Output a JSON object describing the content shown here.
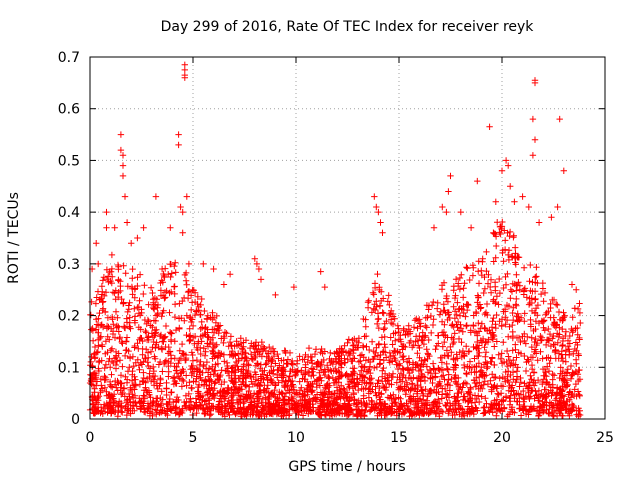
{
  "chart_data": {
    "type": "scatter",
    "title": "Day 299 of 2016, Rate Of TEC Index for receiver reyk",
    "xlabel": "GPS time / hours",
    "ylabel": "ROTI / TECUs",
    "xlim": [
      0,
      25
    ],
    "ylim": [
      0,
      0.7
    ],
    "xticks": [
      0,
      5,
      10,
      15,
      20,
      25
    ],
    "xtick_labels": [
      "0",
      "5",
      "10",
      "15",
      "20",
      "25"
    ],
    "yticks": [
      0,
      0.1,
      0.2,
      0.3,
      0.4,
      0.5,
      0.6,
      0.7
    ],
    "ytick_labels": [
      "0",
      "0.1",
      "0.2",
      "0.3",
      "0.4",
      "0.5",
      "0.6",
      "0.7"
    ],
    "grid": true,
    "marker": "+",
    "color": "#ff0000",
    "envelope": [
      {
        "x": 0.0,
        "base": 0.09,
        "spread": 0.12
      },
      {
        "x": 1.0,
        "base": 0.12,
        "spread": 0.18
      },
      {
        "x": 2.0,
        "base": 0.1,
        "spread": 0.18
      },
      {
        "x": 3.0,
        "base": 0.1,
        "spread": 0.16
      },
      {
        "x": 4.0,
        "base": 0.1,
        "spread": 0.2
      },
      {
        "x": 5.0,
        "base": 0.08,
        "spread": 0.18
      },
      {
        "x": 6.0,
        "base": 0.07,
        "spread": 0.12
      },
      {
        "x": 7.0,
        "base": 0.05,
        "spread": 0.09
      },
      {
        "x": 8.0,
        "base": 0.05,
        "spread": 0.1
      },
      {
        "x": 9.0,
        "base": 0.04,
        "spread": 0.08
      },
      {
        "x": 10.0,
        "base": 0.04,
        "spread": 0.08
      },
      {
        "x": 11.0,
        "base": 0.04,
        "spread": 0.08
      },
      {
        "x": 12.0,
        "base": 0.04,
        "spread": 0.08
      },
      {
        "x": 13.0,
        "base": 0.05,
        "spread": 0.1
      },
      {
        "x": 14.0,
        "base": 0.1,
        "spread": 0.18
      },
      {
        "x": 15.0,
        "base": 0.07,
        "spread": 0.1
      },
      {
        "x": 16.0,
        "base": 0.07,
        "spread": 0.12
      },
      {
        "x": 17.0,
        "base": 0.09,
        "spread": 0.16
      },
      {
        "x": 18.0,
        "base": 0.1,
        "spread": 0.18
      },
      {
        "x": 19.0,
        "base": 0.1,
        "spread": 0.2
      },
      {
        "x": 20.0,
        "base": 0.14,
        "spread": 0.24
      },
      {
        "x": 21.0,
        "base": 0.12,
        "spread": 0.2
      },
      {
        "x": 22.0,
        "base": 0.1,
        "spread": 0.16
      },
      {
        "x": 23.0,
        "base": 0.08,
        "spread": 0.12
      },
      {
        "x": 23.8,
        "base": 0.09,
        "spread": 0.12
      }
    ],
    "outliers": [
      [
        0.1,
        0.29
      ],
      [
        0.3,
        0.34
      ],
      [
        0.4,
        0.3
      ],
      [
        0.8,
        0.4
      ],
      [
        0.8,
        0.37
      ],
      [
        1.2,
        0.37
      ],
      [
        1.5,
        0.55
      ],
      [
        1.5,
        0.52
      ],
      [
        1.6,
        0.51
      ],
      [
        1.6,
        0.49
      ],
      [
        1.6,
        0.47
      ],
      [
        1.7,
        0.43
      ],
      [
        1.8,
        0.38
      ],
      [
        2.0,
        0.34
      ],
      [
        2.3,
        0.35
      ],
      [
        2.6,
        0.37
      ],
      [
        3.2,
        0.43
      ],
      [
        3.5,
        0.29
      ],
      [
        3.9,
        0.37
      ],
      [
        4.3,
        0.55
      ],
      [
        4.3,
        0.53
      ],
      [
        4.4,
        0.41
      ],
      [
        4.5,
        0.4
      ],
      [
        4.5,
        0.36
      ],
      [
        4.6,
        0.685
      ],
      [
        4.6,
        0.675
      ],
      [
        4.6,
        0.665
      ],
      [
        4.6,
        0.66
      ],
      [
        4.7,
        0.43
      ],
      [
        4.8,
        0.3
      ],
      [
        5.5,
        0.3
      ],
      [
        6.0,
        0.29
      ],
      [
        6.5,
        0.26
      ],
      [
        6.8,
        0.28
      ],
      [
        8.0,
        0.31
      ],
      [
        8.1,
        0.3
      ],
      [
        8.2,
        0.29
      ],
      [
        8.3,
        0.27
      ],
      [
        9.0,
        0.24
      ],
      [
        9.9,
        0.255
      ],
      [
        11.2,
        0.285
      ],
      [
        11.4,
        0.255
      ],
      [
        13.8,
        0.43
      ],
      [
        13.9,
        0.41
      ],
      [
        14.0,
        0.4
      ],
      [
        14.1,
        0.38
      ],
      [
        14.2,
        0.36
      ],
      [
        16.7,
        0.37
      ],
      [
        17.1,
        0.41
      ],
      [
        17.3,
        0.4
      ],
      [
        17.4,
        0.44
      ],
      [
        17.5,
        0.47
      ],
      [
        18.0,
        0.4
      ],
      [
        18.5,
        0.37
      ],
      [
        18.8,
        0.46
      ],
      [
        19.4,
        0.565
      ],
      [
        19.7,
        0.42
      ],
      [
        20.0,
        0.48
      ],
      [
        20.2,
        0.5
      ],
      [
        20.3,
        0.49
      ],
      [
        20.4,
        0.45
      ],
      [
        20.6,
        0.42
      ],
      [
        21.0,
        0.43
      ],
      [
        21.3,
        0.41
      ],
      [
        21.6,
        0.655
      ],
      [
        21.6,
        0.65
      ],
      [
        21.5,
        0.58
      ],
      [
        21.6,
        0.54
      ],
      [
        21.5,
        0.51
      ],
      [
        21.8,
        0.38
      ],
      [
        22.4,
        0.39
      ],
      [
        22.7,
        0.41
      ],
      [
        22.8,
        0.58
      ],
      [
        23.0,
        0.48
      ],
      [
        23.4,
        0.26
      ],
      [
        23.6,
        0.25
      ],
      [
        21.5,
        0.02
      ],
      [
        21.7,
        0.015
      ]
    ]
  }
}
